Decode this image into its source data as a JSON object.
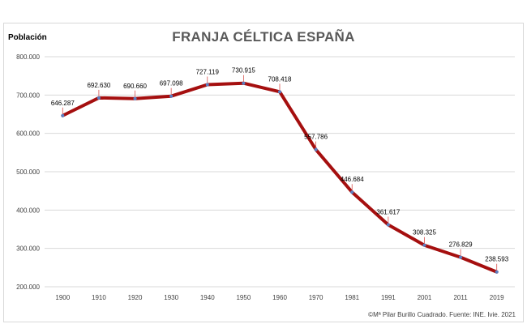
{
  "chart_data": {
    "type": "line",
    "title": "FRANJA CÉLTICA ESPAÑA",
    "ylabel": "Población",
    "xlabel": "",
    "categories": [
      "1900",
      "1910",
      "1920",
      "1930",
      "1940",
      "1950",
      "1960",
      "1970",
      "1981",
      "1991",
      "2001",
      "2011",
      "2019"
    ],
    "series": [
      {
        "values": [
          646287,
          692630,
          690660,
          697098,
          727119,
          730915,
          708418,
          557786,
          446684,
          361617,
          308325,
          276829,
          238593
        ],
        "labels": [
          "646.287",
          "692.630",
          "690.660",
          "697.098",
          "727.119",
          "730.915",
          "708.418",
          "557.786",
          "446.684",
          "361.617",
          "308.325",
          "276.829",
          "238.593"
        ]
      }
    ],
    "ylim": [
      200000,
      800000
    ],
    "yticks": [
      200000,
      300000,
      400000,
      500000,
      600000,
      700000,
      800000
    ],
    "ytick_labels": [
      "200.000",
      "300.000",
      "400.000",
      "500.000",
      "600.000",
      "700.000",
      "800.000"
    ],
    "grid": true,
    "line_color": "#a50f0f",
    "marker_color": "#5b7fc2",
    "leader_color": "#d9534f",
    "source": "©Mª Pilar Burillo Cuadrado.  Fuente: INE. Ivie. 2021"
  }
}
